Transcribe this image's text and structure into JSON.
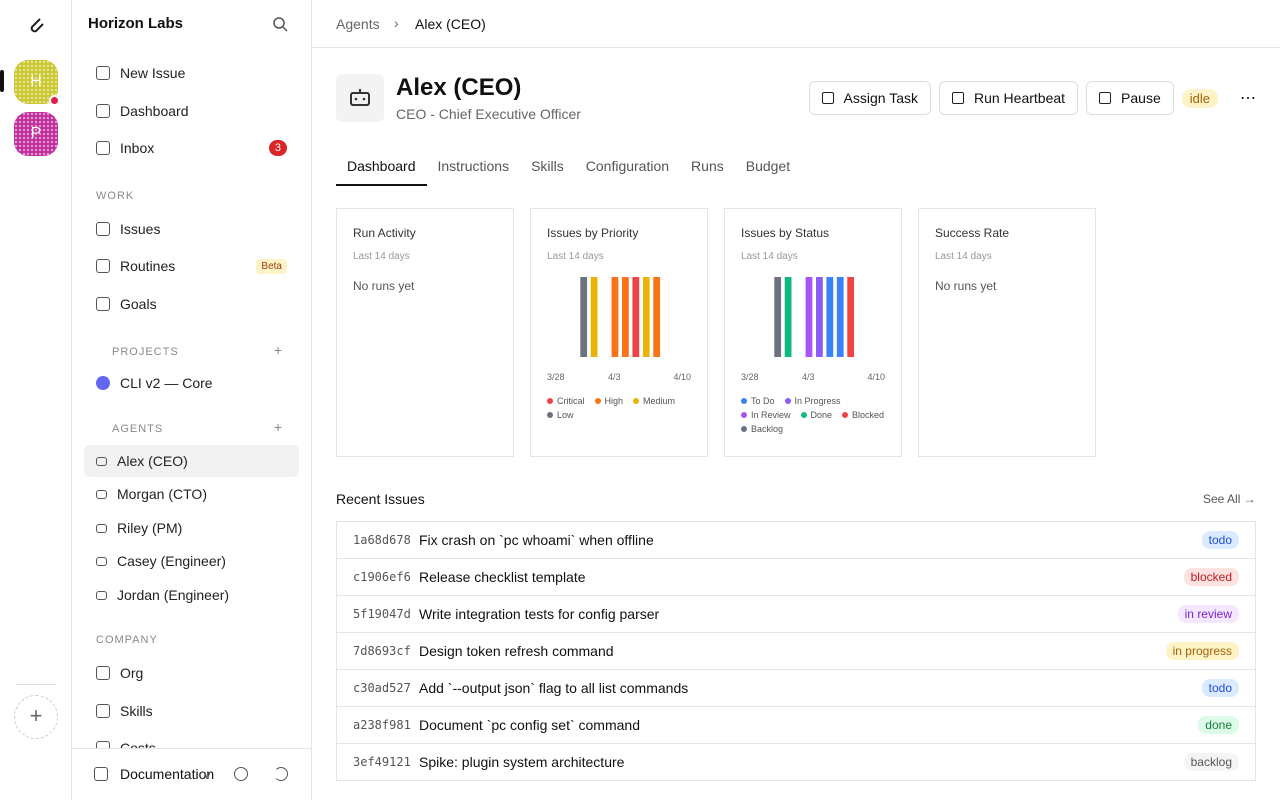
{
  "rail": {
    "workspaces": [
      {
        "initial": "H",
        "color": "#c8c62a"
      },
      {
        "initial": "P",
        "color": "#c02a9a"
      }
    ]
  },
  "sidebar": {
    "company": "Horizon Labs",
    "nav": [
      {
        "label": "New Issue"
      },
      {
        "label": "Dashboard"
      },
      {
        "label": "Inbox",
        "badge": 3
      }
    ],
    "work_heading": "WORK",
    "work": [
      {
        "label": "Issues"
      },
      {
        "label": "Routines",
        "tag": "Beta"
      },
      {
        "label": "Goals"
      }
    ],
    "projects_heading": "PROJECTS",
    "projects": [
      {
        "label": "CLI v2 — Core",
        "color": "#6366f1"
      }
    ],
    "agents_heading": "AGENTS",
    "agents": [
      "Alex (CEO)",
      "Morgan (CTO)",
      "Riley (PM)",
      "Casey (Engineer)",
      "Jordan (Engineer)"
    ],
    "company_heading": "COMPANY",
    "company_items": [
      "Org",
      "Skills",
      "Costs"
    ],
    "footer": {
      "label": "Documentation",
      "version": "v"
    }
  },
  "breadcrumb": [
    "Agents",
    "Alex (CEO)"
  ],
  "agent": {
    "name": "Alex (CEO)",
    "role": "CEO - Chief Executive Officer",
    "status": "idle",
    "actions": [
      "Assign Task",
      "Run Heartbeat",
      "Pause"
    ]
  },
  "tabs": [
    "Dashboard",
    "Instructions",
    "Skills",
    "Configuration",
    "Runs",
    "Budget"
  ],
  "cards": [
    {
      "title": "Run Activity",
      "subtitle": "Last 14 days",
      "empty": "No runs yet"
    },
    {
      "title": "Issues by Priority",
      "subtitle": "Last 14 days",
      "x_labels": [
        "3/28",
        "4/3",
        "4/10"
      ],
      "bars": [
        null,
        null,
        null,
        "#6b7280",
        "#eab308",
        null,
        "#f97316",
        "#f97316",
        "#ef4444",
        "#eab308",
        "#f97316",
        null,
        null,
        null
      ],
      "legend": [
        {
          "name": "Critical",
          "color": "#ef4444"
        },
        {
          "name": "High",
          "color": "#f97316"
        },
        {
          "name": "Medium",
          "color": "#eab308"
        },
        {
          "name": "Low",
          "color": "#6b7280"
        }
      ]
    },
    {
      "title": "Issues by Status",
      "subtitle": "Last 14 days",
      "x_labels": [
        "3/28",
        "4/3",
        "4/10"
      ],
      "bars": [
        null,
        null,
        null,
        "#6b7280",
        "#10b981",
        null,
        "#a855f7",
        "#8b5cf6",
        "#3b82f6",
        "#3b82f6",
        "#ef4444",
        null,
        null,
        null
      ],
      "legend": [
        {
          "name": "To Do",
          "color": "#3b82f6"
        },
        {
          "name": "In Progress",
          "color": "#8b5cf6"
        },
        {
          "name": "In Review",
          "color": "#a855f7"
        },
        {
          "name": "Done",
          "color": "#10b981"
        },
        {
          "name": "Blocked",
          "color": "#ef4444"
        },
        {
          "name": "Backlog",
          "color": "#6b7280"
        }
      ]
    },
    {
      "title": "Success Rate",
      "subtitle": "Last 14 days",
      "empty": "No runs yet"
    }
  ],
  "recent": {
    "title": "Recent Issues",
    "see_all": "See All →",
    "issues": [
      {
        "id": "1a68d678",
        "title": "Fix crash on `pc whoami` when offline",
        "status": "todo"
      },
      {
        "id": "c1906ef6",
        "title": "Release checklist template",
        "status": "blocked"
      },
      {
        "id": "5f19047d",
        "title": "Write integration tests for config parser",
        "status": "in review"
      },
      {
        "id": "7d8693cf",
        "title": "Design token refresh command",
        "status": "in progress"
      },
      {
        "id": "c30ad527",
        "title": "Add `--output json` flag to all list commands",
        "status": "todo"
      },
      {
        "id": "a238f981",
        "title": "Document `pc config set` command",
        "status": "done"
      },
      {
        "id": "3ef49121",
        "title": "Spike: plugin system architecture",
        "status": "backlog"
      }
    ]
  }
}
